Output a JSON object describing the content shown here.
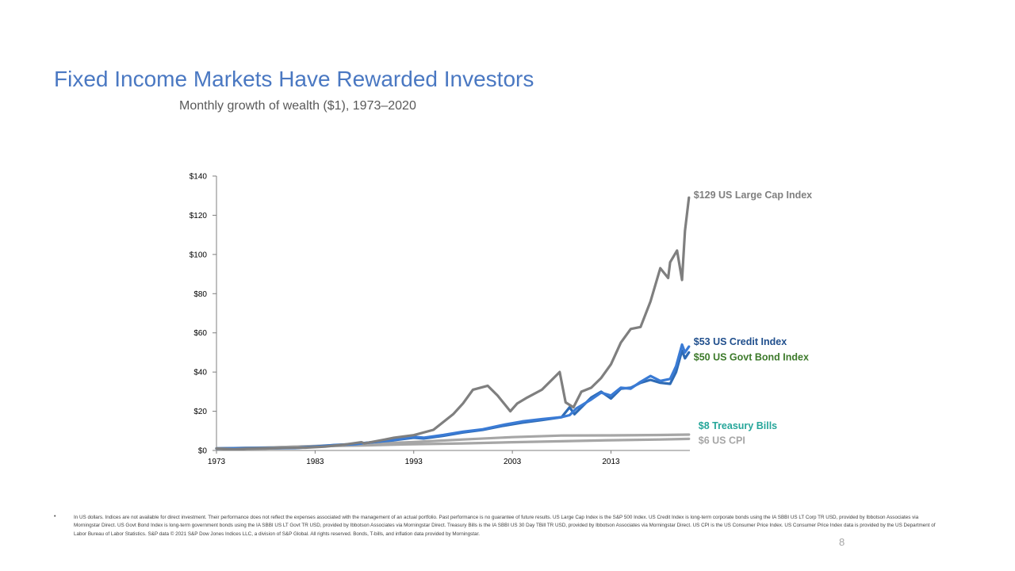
{
  "slide": {
    "title": "Fixed Income Markets Have Rewarded Investors",
    "subtitle": "Monthly growth of wealth ($1), 1973–2020",
    "footnote_bullet": "•",
    "footnote": "In US dollars. Indices are not available for direct investment. Their performance does not reflect the expenses associated with the management of an actual portfolio. Past performance is no guarantee of future results. US Large Cap Index is the S&P 500 Index. US Credit Index is long-term corporate bonds using the IA SBBI US LT Corp TR USD, provided by Ibbotson Associates via Morningstar Direct. US Govt Bond Index is long-term government bonds using the IA SBBI US LT Govt TR USD, provided by Ibbotson Associates via Morningstar Direct. Treasury Bills is the IA SBBI US 30 Day TBill TR USD, provided by Ibbotson Associates via Morningstar Direct. US CPI is the US Consumer Price Index. US Consumer Price Index data is provided by the US Department of Labor Bureau of Labor Statistics. S&P data © 2021 S&P Dow Jones Indices LLC, a division of S&P Global. All rights reserved. Bonds, T-bills, and inflation data provided by Morningstar.",
    "page_number": "8"
  },
  "chart_data": {
    "type": "line",
    "xlim": [
      1973,
      2021
    ],
    "ylim": [
      0,
      140
    ],
    "x_ticks": [
      1973,
      1983,
      1993,
      2003,
      2013
    ],
    "x_tick_labels": [
      "1973",
      "1983",
      "1993",
      "2003",
      "2013"
    ],
    "y_ticks": [
      0,
      20,
      40,
      60,
      80,
      100,
      120,
      140
    ],
    "y_tick_labels": [
      "$0",
      "$20",
      "$40",
      "$60",
      "$80",
      "$100",
      "$120",
      "$140"
    ],
    "grid": false,
    "legend": "end-of-line labels",
    "series": [
      {
        "key": "cpi",
        "label": "$6 US CPI",
        "color": "#a6a6a6",
        "label_color": "#a6a6a6",
        "x": [
          1973,
          1978,
          1983,
          1988,
          1993,
          1998,
          2003,
          2008,
          2013,
          2018,
          2020.9
        ],
        "y": [
          1.0,
          1.5,
          2.2,
          2.6,
          3.2,
          3.6,
          4.2,
          4.7,
          5.2,
          5.6,
          5.9
        ]
      },
      {
        "key": "tbills",
        "label": "$8 Treasury Bills",
        "color": "#a6a6a6",
        "label_color": "#26a69a",
        "x": [
          1973,
          1978,
          1983,
          1988,
          1993,
          1998,
          2003,
          2008,
          2013,
          2018,
          2020.9
        ],
        "y": [
          1.0,
          1.4,
          2.3,
          3.3,
          4.3,
          5.6,
          6.8,
          7.6,
          7.7,
          7.9,
          8.1
        ]
      },
      {
        "key": "govt",
        "label": "$50 US Govt Bond Index",
        "color": "#2e6bb5",
        "label_color": "#3d7a2b",
        "x": [
          1973,
          1976,
          1979,
          1981,
          1983,
          1985,
          1987,
          1989,
          1991,
          1993,
          1994,
          1996,
          1998,
          2000,
          2002,
          2004,
          2006,
          2008,
          2008.8,
          2009.3,
          2010,
          2011,
          2012,
          2013,
          2014,
          2015,
          2016,
          2017,
          2018,
          2019,
          2019.6,
          2020.2,
          2020.5,
          2020.9
        ],
        "y": [
          1.0,
          1.2,
          1.2,
          1.3,
          2.0,
          2.8,
          3.3,
          4.3,
          5.2,
          6.5,
          6.1,
          7.5,
          9.2,
          10.5,
          12.5,
          14.2,
          15.5,
          17.0,
          22.0,
          18.5,
          22.0,
          27.0,
          30.0,
          26.5,
          31.5,
          32.0,
          34.5,
          36.0,
          34.5,
          34.0,
          40.0,
          51.0,
          47.0,
          50.0
        ]
      },
      {
        "key": "credit",
        "label": "$53 US Credit Index",
        "color": "#3a7bd5",
        "label_color": "#1f4e8c",
        "x": [
          1973,
          1976,
          1979,
          1981,
          1983,
          1985,
          1987,
          1989,
          1991,
          1993,
          1994,
          1996,
          1998,
          2000,
          2002,
          2004,
          2006,
          2008,
          2008.8,
          2009.5,
          2010,
          2011,
          2012,
          2013,
          2014,
          2015,
          2016,
          2017,
          2018,
          2019,
          2019.6,
          2020.2,
          2020.5,
          2020.9
        ],
        "y": [
          1.0,
          1.1,
          1.1,
          1.2,
          1.9,
          2.7,
          3.2,
          4.3,
          5.4,
          6.9,
          6.5,
          7.9,
          9.6,
          10.8,
          13.0,
          14.8,
          16.0,
          17.0,
          18.0,
          21.5,
          23.0,
          26.0,
          29.5,
          28.0,
          32.0,
          31.5,
          35.0,
          38.0,
          35.5,
          36.5,
          43.0,
          54.0,
          50.0,
          53.0
        ]
      },
      {
        "key": "large_cap",
        "label": "$129 US Large Cap Index",
        "color": "#7f7f7f",
        "label_color": "#7f7f7f",
        "x": [
          1973,
          1974.8,
          1976,
          1978,
          1980,
          1982,
          1984,
          1986,
          1987.7,
          1988,
          1990,
          1991,
          1993,
          1995,
          1997,
          1998,
          1999,
          2000.5,
          2001.5,
          2002.8,
          2003.5,
          2004.5,
          2006,
          2007.8,
          2008.4,
          2009.2,
          2010,
          2011,
          2012,
          2013,
          2014,
          2015,
          2016,
          2017,
          2018,
          2018.8,
          2019,
          2019.7,
          2020.2,
          2020.5,
          2020.9
        ],
        "y": [
          1.0,
          0.6,
          0.9,
          1.0,
          1.3,
          1.4,
          2.0,
          3.0,
          4.2,
          3.6,
          5.5,
          6.5,
          7.8,
          10.5,
          18.5,
          24.0,
          31.0,
          33.0,
          28.0,
          20.0,
          24.0,
          27.0,
          31.0,
          40.0,
          24.5,
          22.0,
          30.0,
          32.0,
          37.0,
          44.0,
          55.0,
          62.0,
          63.0,
          76.0,
          93.0,
          88.0,
          96.0,
          102.0,
          87.0,
          112.0,
          129.0
        ]
      }
    ]
  }
}
